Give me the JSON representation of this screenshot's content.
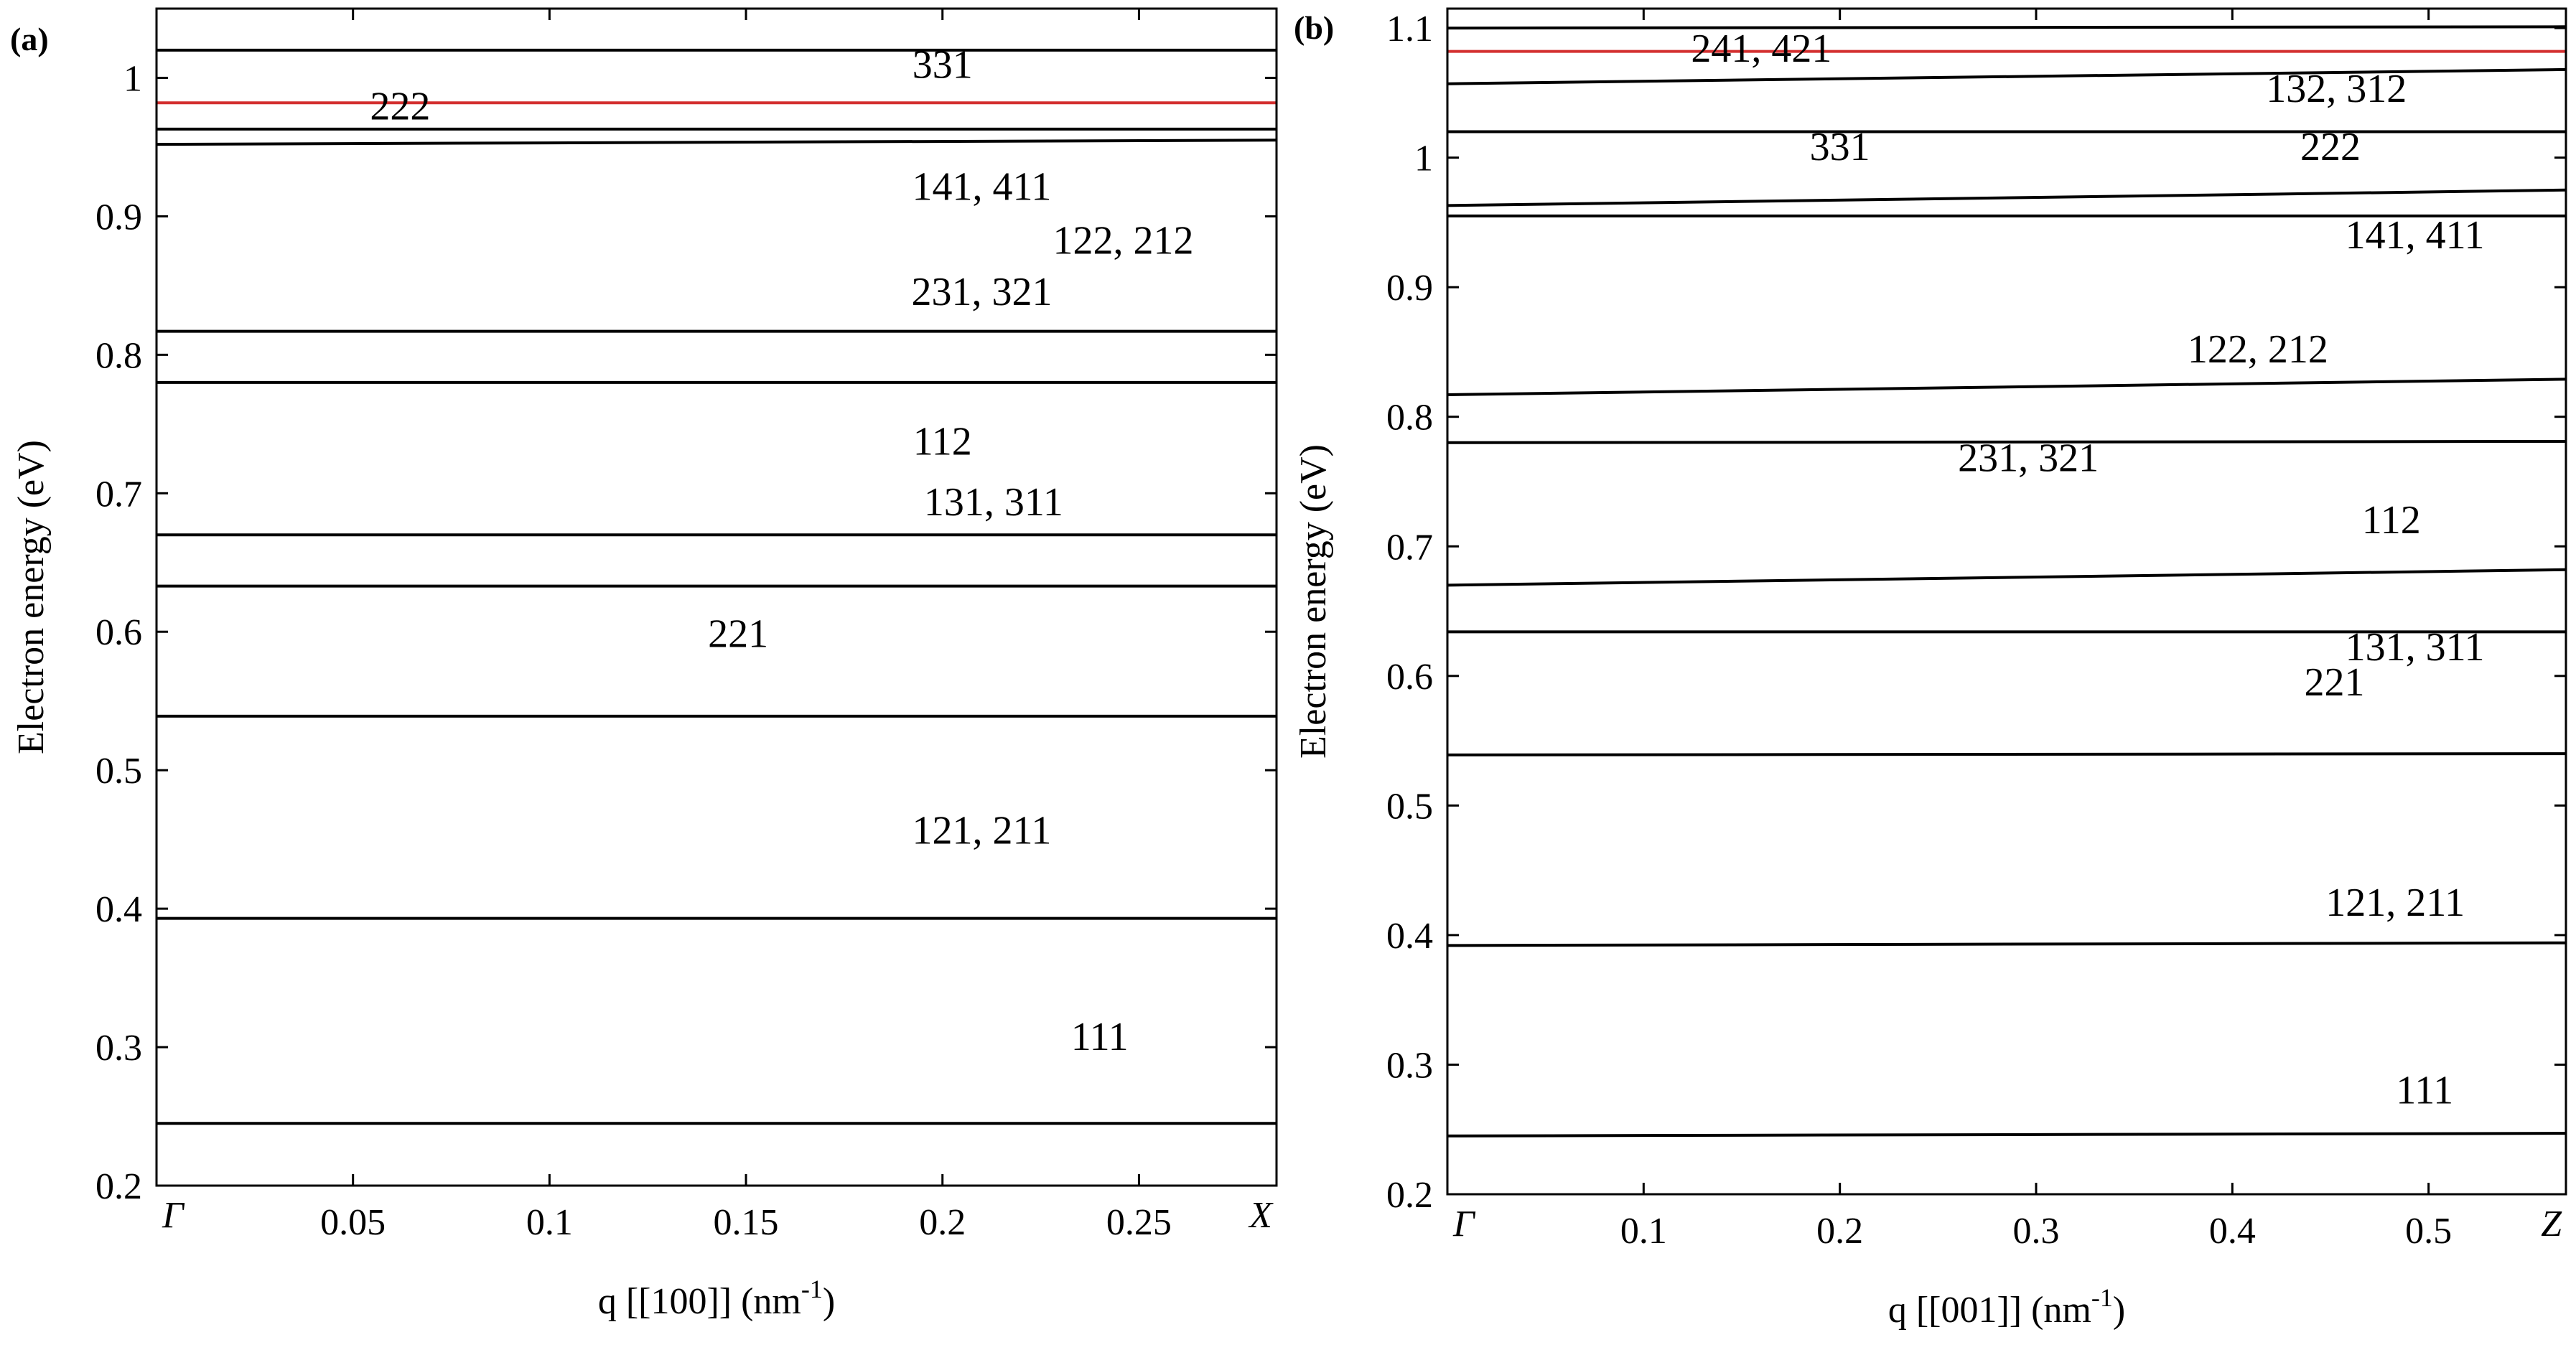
{
  "chart_data": [
    {
      "type": "line",
      "panel_label": "(a)",
      "title": "",
      "xlabel": "q [[100]] (nm",
      "xlabel_sup": "-1",
      "xlabel_close": ")",
      "ylabel": "Electron energy (eV)",
      "xlim": [
        0,
        0.285
      ],
      "ylim": [
        0.2,
        1.05
      ],
      "x_ticks": [
        {
          "value": 0,
          "label": "Γ",
          "italic": true
        },
        {
          "value": 0.05,
          "label": "0.05"
        },
        {
          "value": 0.1,
          "label": "0.1"
        },
        {
          "value": 0.15,
          "label": "0.15"
        },
        {
          "value": 0.2,
          "label": "0.2"
        },
        {
          "value": 0.25,
          "label": "0.25"
        },
        {
          "value": 0.285,
          "label": "X",
          "italic": true
        }
      ],
      "y_ticks": [
        {
          "value": 0.2,
          "label": "0.2"
        },
        {
          "value": 0.3,
          "label": "0.3"
        },
        {
          "value": 0.4,
          "label": "0.4"
        },
        {
          "value": 0.5,
          "label": "0.5"
        },
        {
          "value": 0.6,
          "label": "0.6"
        },
        {
          "value": 0.7,
          "label": "0.7"
        },
        {
          "value": 0.8,
          "label": "0.8"
        },
        {
          "value": 0.9,
          "label": "0.9"
        },
        {
          "value": 1.0,
          "label": "1"
        }
      ],
      "grid": false,
      "series": [
        {
          "values": [
            0.245,
            0.245
          ],
          "color": "#000000"
        },
        {
          "values": [
            0.393,
            0.393
          ],
          "color": "#000000"
        },
        {
          "values": [
            0.539,
            0.539
          ],
          "color": "#000000"
        },
        {
          "values": [
            0.633,
            0.633
          ],
          "color": "#000000"
        },
        {
          "values": [
            0.67,
            0.67
          ],
          "color": "#000000"
        },
        {
          "values": [
            0.78,
            0.78
          ],
          "color": "#000000"
        },
        {
          "values": [
            0.817,
            0.817
          ],
          "color": "#000000"
        },
        {
          "values": [
            0.952,
            0.955
          ],
          "color": "#000000"
        },
        {
          "values": [
            0.963,
            0.963
          ],
          "color": "#000000"
        },
        {
          "values": [
            0.982,
            0.982
          ],
          "color": "#d32f2f"
        },
        {
          "values": [
            1.02,
            1.02
          ],
          "color": "#000000"
        }
      ],
      "x": [
        0,
        0.285
      ],
      "annotations": [
        {
          "text": "111",
          "x": 0.24,
          "y": 0.298
        },
        {
          "text": "121, 211",
          "x": 0.21,
          "y": 0.447
        },
        {
          "text": "221",
          "x": 0.148,
          "y": 0.589
        },
        {
          "text": "131, 311",
          "x": 0.213,
          "y": 0.684
        },
        {
          "text": "112",
          "x": 0.2,
          "y": 0.728
        },
        {
          "text": "231, 321",
          "x": 0.21,
          "y": 0.836
        },
        {
          "text": "122, 212",
          "x": 0.246,
          "y": 0.873
        },
        {
          "text": "141, 411",
          "x": 0.21,
          "y": 0.912
        },
        {
          "text": "222",
          "x": 0.062,
          "y": 0.97
        },
        {
          "text": "331",
          "x": 0.2,
          "y": 1.0
        }
      ]
    },
    {
      "type": "line",
      "panel_label": "(b)",
      "title": "",
      "xlabel": "q [[001]] (nm",
      "xlabel_sup": "-1",
      "xlabel_close": ")",
      "ylabel": "Electron energy (eV)",
      "xlim": [
        0,
        0.57
      ],
      "ylim": [
        0.2,
        1.115
      ],
      "x_ticks": [
        {
          "value": 0,
          "label": "Γ",
          "italic": true
        },
        {
          "value": 0.1,
          "label": "0.1"
        },
        {
          "value": 0.2,
          "label": "0.2"
        },
        {
          "value": 0.3,
          "label": "0.3"
        },
        {
          "value": 0.4,
          "label": "0.4"
        },
        {
          "value": 0.5,
          "label": "0.5"
        },
        {
          "value": 0.57,
          "label": "Z",
          "italic": true
        }
      ],
      "y_ticks": [
        {
          "value": 0.2,
          "label": "0.2"
        },
        {
          "value": 0.3,
          "label": "0.3"
        },
        {
          "value": 0.4,
          "label": "0.4"
        },
        {
          "value": 0.5,
          "label": "0.5"
        },
        {
          "value": 0.6,
          "label": "0.6"
        },
        {
          "value": 0.7,
          "label": "0.7"
        },
        {
          "value": 0.8,
          "label": "0.8"
        },
        {
          "value": 0.9,
          "label": "0.9"
        },
        {
          "value": 1.0,
          "label": "1"
        },
        {
          "value": 1.1,
          "label": "1.1"
        }
      ],
      "grid": false,
      "series": [
        {
          "values": [
            0.245,
            0.247
          ],
          "color": "#000000"
        },
        {
          "values": [
            0.392,
            0.394
          ],
          "color": "#000000"
        },
        {
          "values": [
            0.539,
            0.54
          ],
          "color": "#000000"
        },
        {
          "values": [
            0.634,
            0.634
          ],
          "color": "#000000"
        },
        {
          "values": [
            0.67,
            0.682
          ],
          "color": "#000000"
        },
        {
          "values": [
            0.78,
            0.781
          ],
          "color": "#000000"
        },
        {
          "values": [
            0.817,
            0.829
          ],
          "color": "#000000"
        },
        {
          "values": [
            0.955,
            0.955
          ],
          "color": "#000000"
        },
        {
          "values": [
            0.963,
            0.975
          ],
          "color": "#000000"
        },
        {
          "values": [
            1.02,
            1.02
          ],
          "color": "#000000"
        },
        {
          "values": [
            1.057,
            1.068
          ],
          "color": "#000000"
        },
        {
          "values": [
            1.082,
            1.082
          ],
          "color": "#d32f2f"
        },
        {
          "values": [
            1.1,
            1.101
          ],
          "color": "#000000"
        }
      ],
      "x": [
        0,
        0.57
      ],
      "annotations": [
        {
          "text": "111",
          "x": 0.498,
          "y": 0.27
        },
        {
          "text": "121, 211",
          "x": 0.483,
          "y": 0.415
        },
        {
          "text": "221",
          "x": 0.452,
          "y": 0.585
        },
        {
          "text": "131, 311",
          "x": 0.493,
          "y": 0.612
        },
        {
          "text": "112",
          "x": 0.481,
          "y": 0.71
        },
        {
          "text": "231, 321",
          "x": 0.296,
          "y": 0.758
        },
        {
          "text": "122, 212",
          "x": 0.413,
          "y": 0.842
        },
        {
          "text": "141, 411",
          "x": 0.493,
          "y": 0.93
        },
        {
          "text": "331",
          "x": 0.2,
          "y": 0.998
        },
        {
          "text": "222",
          "x": 0.45,
          "y": 0.998
        },
        {
          "text": "132, 312",
          "x": 0.453,
          "y": 1.043
        },
        {
          "text": "241, 421",
          "x": 0.16,
          "y": 1.074
        }
      ]
    }
  ]
}
